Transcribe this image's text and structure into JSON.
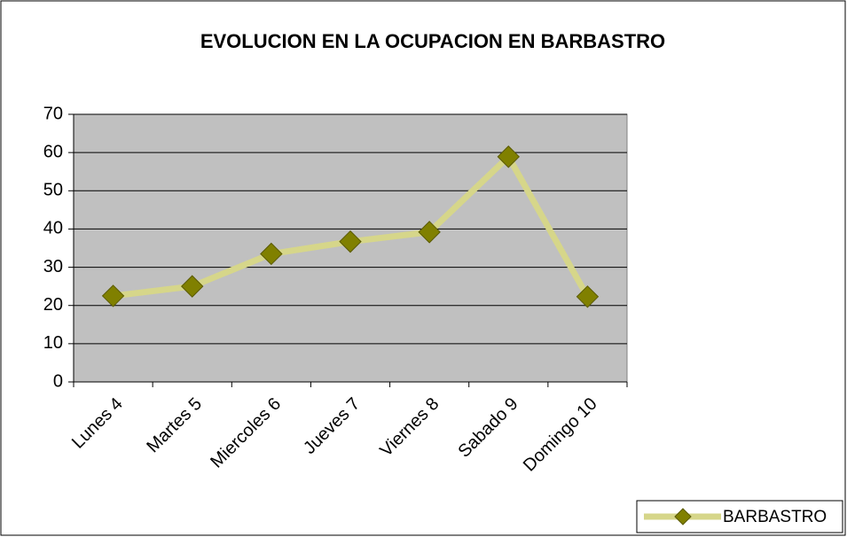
{
  "chart_data": {
    "type": "line",
    "title": "EVOLUCION EN LA OCUPACION EN BARBASTRO",
    "categories": [
      "Lunes 4",
      "Martes 5",
      "Miercoles 6",
      "Jueves 7",
      "Viernes 8",
      "Sabado 9",
      "Domingo 10"
    ],
    "series": [
      {
        "name": "BARBASTRO",
        "color": "#808000",
        "line_color": "#d6d68a",
        "values": [
          22.5,
          25,
          33.5,
          36.7,
          39.2,
          58.9,
          22.3
        ]
      }
    ],
    "ylim": [
      0,
      70
    ],
    "yticks": [
      0,
      10,
      20,
      30,
      40,
      50,
      60,
      70
    ],
    "grid": true,
    "legend": "bottom-right"
  }
}
